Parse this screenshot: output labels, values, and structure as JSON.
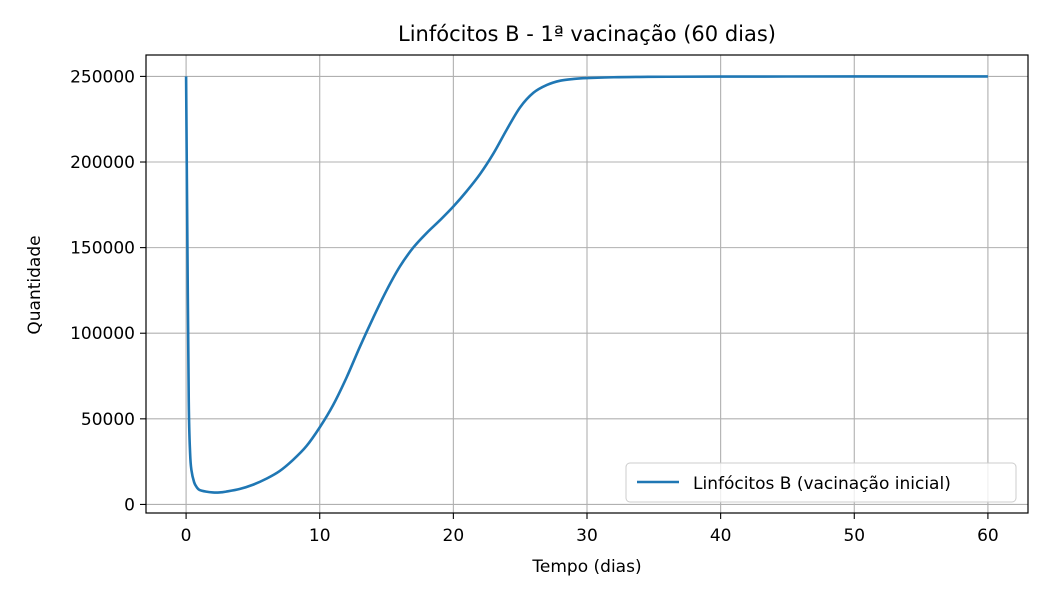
{
  "chart_data": {
    "type": "line",
    "title": "Linfócitos B - 1ª vacinação (60 dias)",
    "xlabel": "Tempo (dias)",
    "ylabel": "Quantidade",
    "xlim": [
      -3,
      63
    ],
    "ylim": [
      -5000,
      262500
    ],
    "xticks": [
      0,
      10,
      20,
      30,
      40,
      50,
      60
    ],
    "yticks": [
      0,
      50000,
      100000,
      150000,
      200000,
      250000
    ],
    "xtick_labels": [
      "0",
      "10",
      "20",
      "30",
      "40",
      "50",
      "60"
    ],
    "ytick_labels": [
      "0",
      "50000",
      "100000",
      "150000",
      "200000",
      "250000"
    ],
    "grid": true,
    "legend_position": "lower-right",
    "series": [
      {
        "name": "Linfócitos B (vacinação inicial)",
        "color": "#1f77b4",
        "x": [
          0,
          0.1,
          0.2,
          0.3,
          0.4,
          0.6,
          0.8,
          1.0,
          1.5,
          2.0,
          2.5,
          3.0,
          4.0,
          5.0,
          6.0,
          7.0,
          8.0,
          9.0,
          10.0,
          11.0,
          12.0,
          13.0,
          14.0,
          15.0,
          16.0,
          17.0,
          18.0,
          19.0,
          20.0,
          21.0,
          22.0,
          23.0,
          24.0,
          25.0,
          26.0,
          27.0,
          28.0,
          29.0,
          30.0,
          32.0,
          34.0,
          36.0,
          40.0,
          45.0,
          50.0,
          55.0,
          60.0
        ],
        "y": [
          250000,
          150000,
          60000,
          30000,
          20000,
          13000,
          10000,
          8500,
          7500,
          7000,
          7000,
          7500,
          9000,
          11500,
          15000,
          19500,
          26000,
          34000,
          45000,
          58000,
          74000,
          92000,
          109000,
          125000,
          139000,
          150000,
          158500,
          166000,
          174000,
          183000,
          193000,
          205000,
          219000,
          232000,
          240500,
          245000,
          247500,
          248500,
          249000,
          249500,
          249700,
          249800,
          249900,
          249950,
          250000,
          250000,
          250000
        ]
      }
    ]
  }
}
